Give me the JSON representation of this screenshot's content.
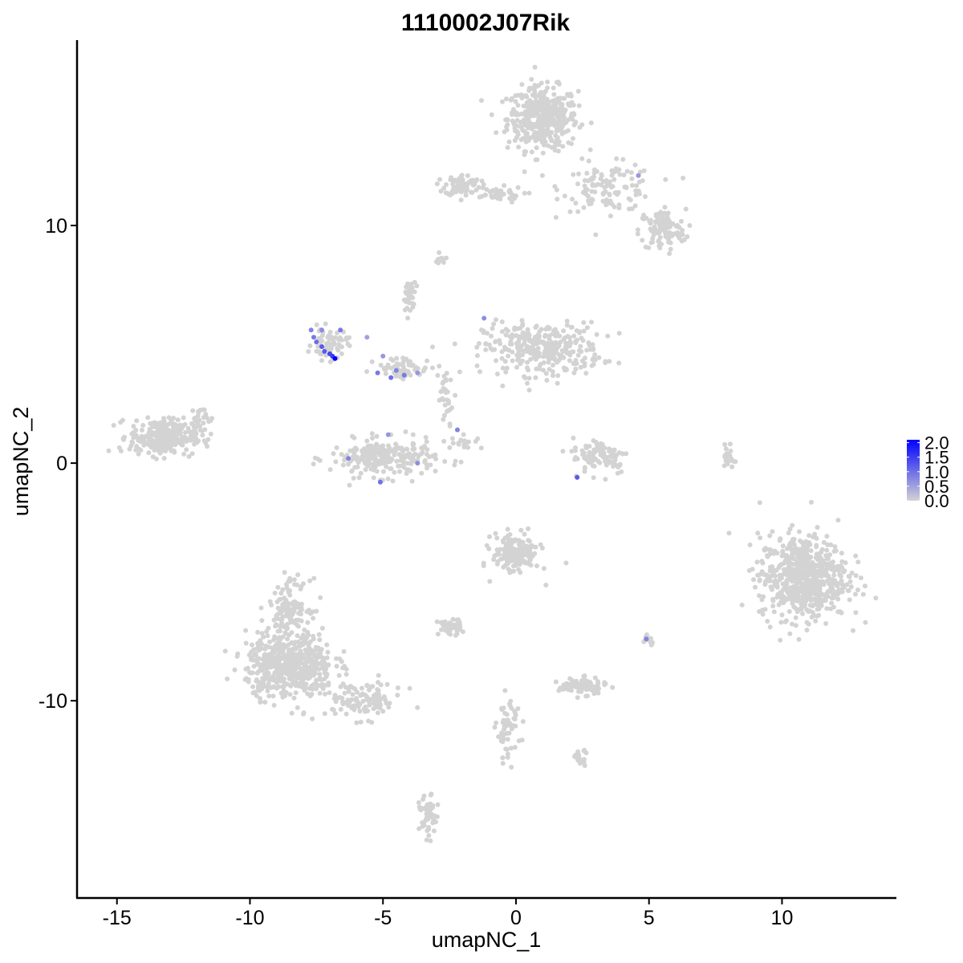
{
  "chart_data": {
    "type": "scatter",
    "title": "1110002J07Rik",
    "xlabel": "umapNC_1",
    "ylabel": "umapNC_2",
    "xlim": [
      -16.5,
      14.3
    ],
    "ylim": [
      -18.3,
      17.8
    ],
    "x_ticks": [
      -15,
      -10,
      -5,
      0,
      5,
      10
    ],
    "x_tick_labels": [
      "-15",
      "-10",
      "-5",
      "0",
      "5",
      "10"
    ],
    "y_ticks": [
      -10,
      0,
      10
    ],
    "y_tick_labels": [
      "-10",
      "0",
      "10"
    ],
    "grid": false,
    "colors": {
      "low": "#d3d3d3",
      "high": "#0000ff"
    },
    "legend": {
      "position": "right",
      "breaks": [
        2.0,
        1.5,
        1.0,
        0.5,
        0.0
      ],
      "labels": [
        "2.0",
        "1.5",
        "1.0",
        "0.5",
        "0.0"
      ],
      "min": 0.0,
      "max": 2.1
    },
    "clusters": [
      {
        "center": [
          1.0,
          14.5
        ],
        "spread": [
          1.2,
          1.2
        ],
        "n": 420
      },
      {
        "center": [
          3.5,
          11.6
        ],
        "spread": [
          1.6,
          0.9
        ],
        "n": 120
      },
      {
        "center": [
          5.5,
          9.8
        ],
        "spread": [
          0.8,
          0.8
        ],
        "n": 110
      },
      {
        "center": [
          -2.0,
          11.7
        ],
        "spread": [
          0.6,
          0.4
        ],
        "n": 80
      },
      {
        "center": [
          -0.8,
          11.3
        ],
        "spread": [
          1.0,
          0.3
        ],
        "n": 40
      },
      {
        "center": [
          1.0,
          4.8
        ],
        "spread": [
          2.0,
          1.0
        ],
        "n": 330
      },
      {
        "center": [
          -5.0,
          0.2
        ],
        "spread": [
          1.8,
          0.7
        ],
        "n": 240
      },
      {
        "center": [
          -7.0,
          5.0
        ],
        "spread": [
          0.6,
          0.6
        ],
        "n": 60
      },
      {
        "center": [
          -13.3,
          1.1
        ],
        "spread": [
          1.1,
          0.7
        ],
        "n": 280
      },
      {
        "center": [
          3.2,
          0.3
        ],
        "spread": [
          1.0,
          0.7
        ],
        "n": 90
      },
      {
        "center": [
          10.8,
          -4.8
        ],
        "spread": [
          1.5,
          1.6
        ],
        "n": 650
      },
      {
        "center": [
          -8.5,
          -8.5
        ],
        "spread": [
          1.5,
          1.2
        ],
        "n": 560
      },
      {
        "center": [
          -8.5,
          -6.0
        ],
        "spread": [
          0.7,
          1.0
        ],
        "n": 120
      },
      {
        "center": [
          -5.8,
          -10.0
        ],
        "spread": [
          1.4,
          0.7
        ],
        "n": 110
      },
      {
        "center": [
          0.0,
          -3.8
        ],
        "spread": [
          0.8,
          0.8
        ],
        "n": 160
      },
      {
        "center": [
          2.5,
          -9.4
        ],
        "spread": [
          0.8,
          0.3
        ],
        "n": 90
      },
      {
        "center": [
          -2.5,
          -6.9
        ],
        "spread": [
          0.4,
          0.3
        ],
        "n": 50
      },
      {
        "center": [
          -0.3,
          -11.2
        ],
        "spread": [
          0.4,
          1.2
        ],
        "n": 60
      },
      {
        "center": [
          -3.3,
          -14.9
        ],
        "spread": [
          0.3,
          0.8
        ],
        "n": 50
      },
      {
        "center": [
          2.4,
          -12.4
        ],
        "spread": [
          0.3,
          0.3
        ],
        "n": 20
      },
      {
        "center": [
          5.0,
          -7.4
        ],
        "spread": [
          0.2,
          0.2
        ],
        "n": 12
      },
      {
        "center": [
          -4.2,
          4.0
        ],
        "spread": [
          1.0,
          0.4
        ],
        "n": 60
      },
      {
        "center": [
          -11.8,
          1.7
        ],
        "spread": [
          0.4,
          0.7
        ],
        "n": 30
      },
      {
        "center": [
          -4.0,
          7.0
        ],
        "spread": [
          0.2,
          0.6
        ],
        "n": 30
      },
      {
        "center": [
          -2.6,
          2.8
        ],
        "spread": [
          0.3,
          0.9
        ],
        "n": 30
      },
      {
        "center": [
          -2.0,
          0.9
        ],
        "spread": [
          0.6,
          0.3
        ],
        "n": 20
      },
      {
        "center": [
          8.0,
          0.3
        ],
        "spread": [
          0.2,
          0.5
        ],
        "n": 20
      },
      {
        "center": [
          -2.8,
          8.6
        ],
        "spread": [
          0.2,
          0.2
        ],
        "n": 12
      }
    ],
    "expressing_points": [
      {
        "x": -7.7,
        "y": 5.6,
        "value": 0.8
      },
      {
        "x": -7.6,
        "y": 5.3,
        "value": 0.9
      },
      {
        "x": -7.5,
        "y": 5.1,
        "value": 1.0
      },
      {
        "x": -7.3,
        "y": 4.9,
        "value": 1.2
      },
      {
        "x": -7.2,
        "y": 4.7,
        "value": 1.2
      },
      {
        "x": -7.0,
        "y": 4.6,
        "value": 1.4
      },
      {
        "x": -6.9,
        "y": 4.5,
        "value": 1.5
      },
      {
        "x": -6.8,
        "y": 4.4,
        "value": 2.1
      },
      {
        "x": -6.6,
        "y": 5.6,
        "value": 0.9
      },
      {
        "x": -7.3,
        "y": 5.6,
        "value": 0.7
      },
      {
        "x": -5.6,
        "y": 5.3,
        "value": 0.5
      },
      {
        "x": -5.0,
        "y": 4.5,
        "value": 0.6
      },
      {
        "x": -5.2,
        "y": 3.8,
        "value": 0.9
      },
      {
        "x": -4.7,
        "y": 3.6,
        "value": 1.0
      },
      {
        "x": -4.5,
        "y": 3.9,
        "value": 0.8
      },
      {
        "x": -4.2,
        "y": 3.7,
        "value": 0.9
      },
      {
        "x": -3.7,
        "y": 3.8,
        "value": 0.6
      },
      {
        "x": -1.2,
        "y": 6.1,
        "value": 0.7
      },
      {
        "x": -2.2,
        "y": 1.4,
        "value": 0.8
      },
      {
        "x": -6.3,
        "y": 0.2,
        "value": 0.8
      },
      {
        "x": -4.8,
        "y": 1.2,
        "value": 0.6
      },
      {
        "x": -5.1,
        "y": -0.8,
        "value": 1.0
      },
      {
        "x": -3.7,
        "y": 0.0,
        "value": 0.7
      },
      {
        "x": 2.3,
        "y": -0.6,
        "value": 1.2
      },
      {
        "x": 4.6,
        "y": 12.1,
        "value": 0.6
      },
      {
        "x": 4.9,
        "y": -7.4,
        "value": 0.8
      }
    ]
  }
}
